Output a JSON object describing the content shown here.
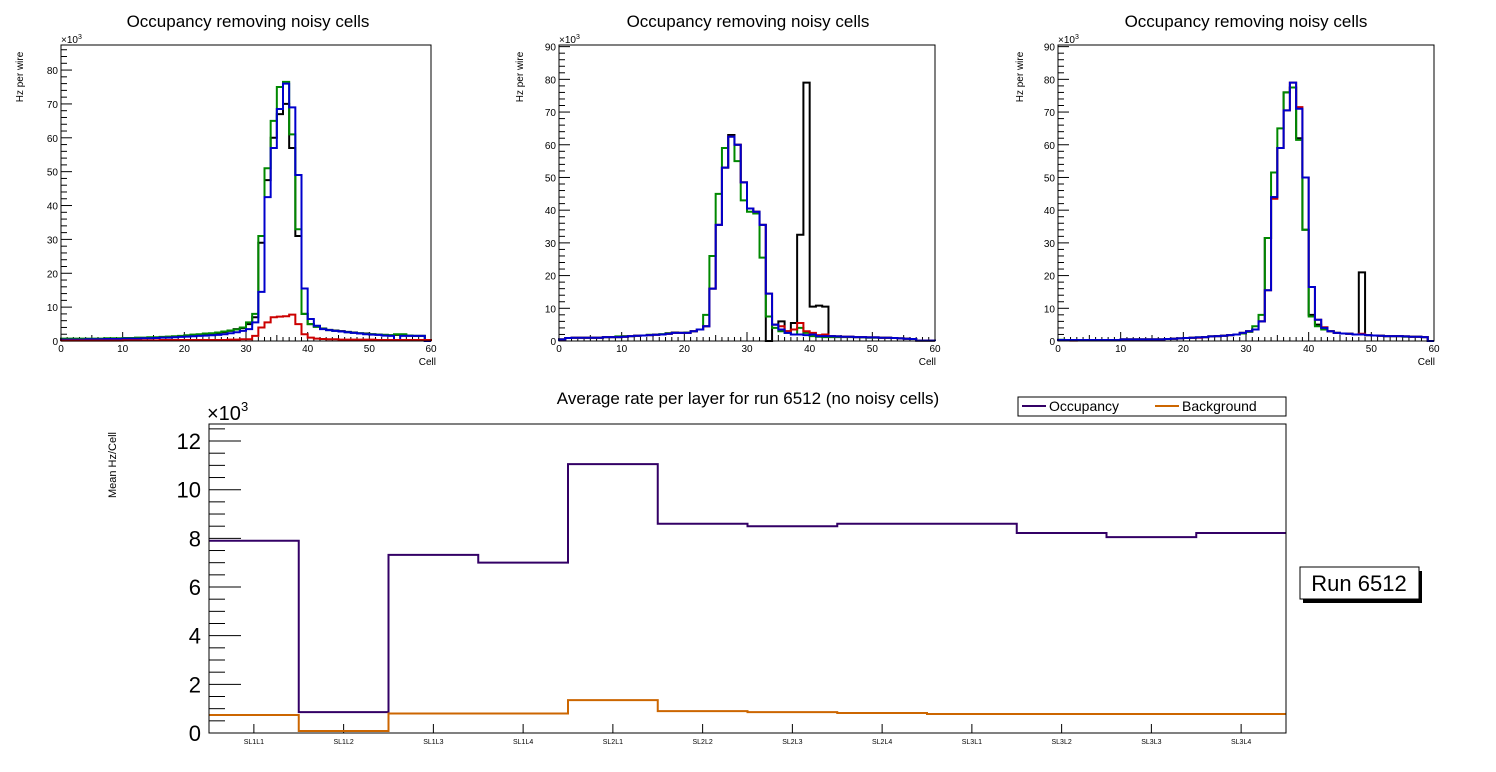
{
  "chart_data": [
    {
      "type": "histogram-step",
      "title": "Occupancy removing noisy cells",
      "xlabel": "Cell",
      "ylabel": "Hz per wire",
      "y_multiplier_label": "×10",
      "y_multiplier_exp": "3",
      "xlim": [
        0,
        60
      ],
      "ylim": [
        0,
        87.4
      ],
      "xticks": [
        0,
        10,
        20,
        30,
        40,
        50,
        60
      ],
      "yticks": [
        0,
        10,
        20,
        30,
        40,
        50,
        60,
        70,
        80
      ],
      "grid": false,
      "series": [
        {
          "name": "black",
          "color": "#000000",
          "values": [
            0.6,
            0.6,
            0.6,
            0.6,
            0.6,
            0.6,
            0.6,
            0.6,
            0.7,
            0.7,
            0.8,
            0.8,
            0.9,
            0.9,
            1.0,
            1.0,
            1.1,
            1.2,
            1.3,
            1.4,
            1.6,
            1.8,
            1.9,
            2.0,
            2.1,
            2.3,
            2.6,
            3.0,
            3.5,
            3.8,
            5.0,
            7.0,
            29.0,
            47.5,
            60.0,
            67.0,
            70.0,
            57.0,
            31.0,
            8.0,
            5.0,
            4.2,
            3.7,
            3.3,
            3.1,
            2.9,
            2.7,
            2.5,
            2.3,
            2.2,
            2.0,
            1.9,
            1.8,
            1.7,
            1.8,
            1.7,
            1.6,
            1.5,
            1.5,
            0
          ]
        },
        {
          "name": "green",
          "color": "#008800",
          "values": [
            0.7,
            0.7,
            0.7,
            0.7,
            0.7,
            0.7,
            0.7,
            0.8,
            0.8,
            0.8,
            0.9,
            0.9,
            1.0,
            1.0,
            1.1,
            1.1,
            1.2,
            1.3,
            1.4,
            1.5,
            1.7,
            1.9,
            2.0,
            2.2,
            2.3,
            2.5,
            2.8,
            3.1,
            3.4,
            4.0,
            5.5,
            8.0,
            31.0,
            51.0,
            65.0,
            75.0,
            76.5,
            61.0,
            33.0,
            8.0,
            5.0,
            4.2,
            3.6,
            3.2,
            3.0,
            2.8,
            2.6,
            2.4,
            2.3,
            2.1,
            2.0,
            1.9,
            1.8,
            1.7,
            2.0,
            2.0,
            1.6,
            1.5,
            1.5,
            0
          ]
        },
        {
          "name": "blue",
          "color": "#0000cc",
          "values": [
            0.4,
            0.4,
            0.4,
            0.4,
            0.5,
            0.5,
            0.5,
            0.6,
            0.6,
            0.6,
            0.7,
            0.7,
            0.7,
            0.8,
            0.8,
            0.9,
            1.0,
            1.0,
            1.1,
            1.2,
            1.3,
            1.4,
            1.5,
            1.6,
            1.7,
            1.8,
            2.0,
            2.3,
            2.6,
            3.0,
            3.5,
            5.5,
            14.5,
            42.5,
            57.0,
            68.5,
            76.0,
            69.0,
            49.0,
            15.5,
            6.5,
            4.5,
            3.5,
            3.2,
            3.0,
            2.8,
            2.6,
            2.4,
            2.2,
            2.0,
            1.9,
            1.8,
            1.6,
            1.5,
            0.3,
            1.5,
            1.5,
            1.5,
            1.5,
            0
          ]
        },
        {
          "name": "red",
          "color": "#cc0000",
          "values": [
            0.1,
            0.1,
            0.1,
            0.1,
            0.1,
            0.1,
            0.1,
            0.1,
            0.1,
            0.1,
            0.2,
            0.2,
            0.2,
            0.2,
            0.2,
            0.2,
            0.3,
            0.3,
            0.3,
            0.3,
            0.3,
            0.3,
            0.3,
            0.3,
            0.3,
            0.3,
            0.3,
            0.4,
            0.4,
            0.5,
            0.5,
            1.5,
            4.0,
            5.5,
            7.0,
            7.2,
            7.3,
            7.8,
            5.0,
            2.0,
            1.0,
            0.7,
            0.6,
            0.5,
            0.5,
            0.4,
            0.4,
            0.4,
            0.4,
            0.4,
            0.4,
            0.3,
            0.3,
            0.3,
            0.3,
            0.3,
            0.3,
            0.3,
            0.3,
            0.3
          ]
        }
      ]
    },
    {
      "type": "histogram-step",
      "title": "Occupancy removing noisy cells",
      "xlabel": "Cell",
      "ylabel": "Hz per wire",
      "y_multiplier_label": "×10",
      "y_multiplier_exp": "3",
      "xlim": [
        0,
        60
      ],
      "ylim": [
        0,
        90.5
      ],
      "xticks": [
        0,
        10,
        20,
        30,
        40,
        50,
        60
      ],
      "yticks": [
        0,
        10,
        20,
        30,
        40,
        50,
        60,
        70,
        80,
        90
      ],
      "grid": false,
      "series": [
        {
          "name": "black",
          "color": "#000000",
          "values": [
            0.5,
            0.9,
            1.0,
            1.0,
            1.0,
            1.0,
            1.0,
            1.2,
            1.2,
            1.2,
            1.3,
            1.5,
            1.6,
            1.7,
            1.8,
            1.9,
            2.0,
            2.2,
            2.6,
            2.5,
            2.5,
            3.0,
            3.5,
            4.5,
            16.0,
            35.5,
            53.0,
            63.0,
            60.0,
            48.5,
            40.5,
            39.5,
            35.5,
            0,
            5.0,
            6.0,
            3.0,
            5.5,
            32.5,
            79.0,
            10.5,
            10.8,
            10.5,
            1.5,
            1.4,
            1.3,
            1.3,
            1.2,
            1.2,
            1.1,
            1.1,
            1.0,
            1.0,
            0.9,
            0.8,
            0.7,
            0.6,
            0.1,
            0.1,
            0.1
          ]
        },
        {
          "name": "green",
          "color": "#008800",
          "values": [
            0.5,
            0.9,
            1.0,
            1.0,
            1.0,
            1.0,
            1.0,
            1.2,
            1.2,
            1.4,
            1.5,
            1.5,
            1.6,
            1.7,
            1.9,
            2.0,
            2.1,
            2.4,
            2.5,
            2.5,
            2.6,
            3.0,
            3.5,
            8.0,
            26.0,
            45.0,
            59.0,
            62.5,
            55.0,
            43.0,
            39.5,
            39.0,
            25.5,
            7.5,
            4.0,
            3.0,
            2.5,
            2.0,
            4.0,
            2.5,
            1.5,
            1.3,
            1.2,
            1.2,
            1.2,
            1.2,
            1.2,
            1.2,
            1.1,
            1.0,
            1.0,
            1.0,
            1.0,
            0.9,
            0.8,
            0.7,
            0.6,
            0.1,
            0.1,
            0.1
          ]
        },
        {
          "name": "red",
          "color": "#cc0000",
          "values": [
            0.5,
            0.9,
            1.0,
            1.0,
            1.0,
            1.0,
            1.0,
            1.2,
            1.2,
            1.2,
            1.3,
            1.5,
            1.6,
            1.7,
            1.8,
            1.9,
            2.0,
            2.2,
            2.5,
            2.5,
            2.5,
            3.0,
            3.5,
            4.5,
            16.0,
            35.5,
            53.0,
            62.5,
            60.0,
            48.5,
            40.5,
            39.5,
            35.5,
            14.5,
            5.0,
            4.5,
            3.0,
            3.5,
            5.5,
            3.0,
            2.5,
            1.8,
            2.0,
            1.5,
            1.4,
            1.3,
            1.3,
            1.2,
            1.2,
            1.1,
            1.1,
            1.0,
            1.0,
            0.9,
            0.8,
            0.7,
            0.6,
            0.1,
            0.1,
            0.1
          ]
        },
        {
          "name": "blue",
          "color": "#0000cc",
          "values": [
            0.5,
            0.9,
            1.0,
            1.0,
            1.0,
            1.0,
            1.0,
            1.2,
            1.2,
            1.2,
            1.3,
            1.5,
            1.6,
            1.7,
            1.8,
            1.9,
            2.0,
            2.2,
            2.5,
            2.5,
            2.5,
            3.0,
            3.5,
            4.5,
            16.0,
            35.5,
            53.0,
            62.5,
            60.0,
            48.5,
            40.5,
            39.5,
            35.5,
            14.5,
            5.0,
            3.5,
            2.5,
            2.0,
            2.0,
            1.8,
            2.0,
            1.5,
            1.5,
            1.5,
            1.4,
            1.3,
            1.3,
            1.2,
            1.2,
            1.1,
            1.1,
            1.0,
            1.0,
            0.9,
            0.8,
            0.7,
            0.6,
            0.1,
            0.1,
            0.1
          ]
        }
      ]
    },
    {
      "type": "histogram-step",
      "title": "Occupancy removing noisy cells",
      "xlabel": "Cell",
      "ylabel": "Hz per wire",
      "y_multiplier_label": "×10",
      "y_multiplier_exp": "3",
      "xlim": [
        0,
        60
      ],
      "ylim": [
        0,
        90.5
      ],
      "xticks": [
        0,
        10,
        20,
        30,
        40,
        50,
        60
      ],
      "yticks": [
        0,
        10,
        20,
        30,
        40,
        50,
        60,
        70,
        80,
        90
      ],
      "grid": false,
      "series": [
        {
          "name": "black",
          "color": "#000000",
          "values": [
            0.3,
            0.3,
            0.3,
            0.3,
            0.3,
            0.3,
            0.3,
            0.3,
            0.3,
            0.3,
            0.5,
            0.5,
            0.5,
            0.5,
            0.5,
            0.5,
            0.5,
            0.6,
            0.7,
            0.8,
            0.9,
            1.0,
            1.1,
            1.2,
            1.4,
            1.5,
            1.6,
            1.8,
            2.0,
            2.5,
            3.0,
            3.5,
            6.0,
            31.5,
            44.0,
            59.0,
            76.0,
            77.5,
            62.0,
            34.0,
            8.0,
            5.0,
            4.0,
            3.0,
            2.5,
            2.3,
            2.2,
            2.0,
            21.0,
            1.8,
            1.7,
            1.6,
            1.5,
            1.5,
            1.5,
            1.4,
            1.3,
            1.3,
            1.2,
            0
          ]
        },
        {
          "name": "green",
          "color": "#008800",
          "values": [
            0.4,
            0.3,
            0.3,
            0.3,
            0.3,
            0.3,
            0.3,
            0.3,
            0.3,
            0.3,
            0.5,
            0.5,
            0.5,
            0.5,
            0.5,
            0.5,
            0.5,
            0.6,
            0.7,
            0.8,
            0.9,
            1.0,
            1.1,
            1.2,
            1.4,
            1.5,
            1.6,
            1.8,
            2.0,
            2.3,
            2.8,
            4.5,
            8.0,
            31.5,
            51.5,
            65.0,
            76.0,
            77.5,
            61.5,
            34.0,
            7.5,
            4.5,
            3.5,
            3.0,
            2.5,
            2.3,
            2.2,
            2.0,
            2.0,
            1.8,
            1.7,
            1.6,
            1.5,
            1.5,
            1.5,
            1.3,
            1.3,
            1.3,
            1.2,
            0
          ]
        },
        {
          "name": "red",
          "color": "#cc0000",
          "values": [
            0.2,
            0.2,
            0.1,
            0.2,
            0.2,
            0.2,
            0.2,
            0.3,
            0.3,
            0.3,
            0.5,
            0.5,
            0.5,
            0.5,
            0.5,
            0.5,
            0.5,
            0.6,
            0.7,
            0.8,
            0.9,
            1.0,
            1.0,
            1.2,
            1.4,
            1.5,
            1.6,
            1.8,
            2.0,
            2.5,
            3.0,
            3.5,
            6.0,
            15.5,
            43.5,
            59.0,
            70.5,
            79.0,
            71.5,
            50.0,
            16.5,
            6.5,
            4.2,
            3.0,
            2.5,
            2.3,
            2.2,
            2.0,
            2.2,
            1.8,
            1.7,
            1.6,
            1.5,
            1.5,
            1.5,
            1.4,
            1.3,
            1.3,
            1.2,
            0
          ]
        },
        {
          "name": "blue",
          "color": "#0000cc",
          "values": [
            0.3,
            0.3,
            0.3,
            0.3,
            0.3,
            0.3,
            0.3,
            0.3,
            0.3,
            0.3,
            0.5,
            0.5,
            0.5,
            0.5,
            0.5,
            0.5,
            0.5,
            0.6,
            0.7,
            0.8,
            0.9,
            1.0,
            1.1,
            1.2,
            1.4,
            1.5,
            1.6,
            1.8,
            2.0,
            2.5,
            3.0,
            3.5,
            6.0,
            15.5,
            44.0,
            59.0,
            70.5,
            79.0,
            71.0,
            50.0,
            16.5,
            6.5,
            4.0,
            3.0,
            2.5,
            2.3,
            2.2,
            2.0,
            2.0,
            1.8,
            1.7,
            1.6,
            1.5,
            1.5,
            1.5,
            1.4,
            1.3,
            1.3,
            1.2,
            0
          ]
        }
      ]
    },
    {
      "type": "histogram-step",
      "title": "Average rate per layer for run 6512 (no noisy cells)",
      "xlabel": "",
      "ylabel": "Mean Hz/Cell",
      "y_multiplier_label": "×10",
      "y_multiplier_exp": "3",
      "categories": [
        "SL1L1",
        "SL1L2",
        "SL1L3",
        "SL1L4",
        "SL2L1",
        "SL2L2",
        "SL2L3",
        "SL2L4",
        "SL3L1",
        "SL3L2",
        "SL3L3",
        "SL3L4"
      ],
      "ylim": [
        0,
        12.7
      ],
      "yticks": [
        0,
        2,
        4,
        6,
        8,
        10,
        12
      ],
      "grid": false,
      "legend_position": "top-right",
      "series": [
        {
          "name": "Occupancy",
          "color": "#330066",
          "values": [
            7.9,
            0.86,
            7.32,
            7.0,
            11.05,
            8.6,
            8.5,
            8.6,
            8.6,
            8.22,
            8.05,
            8.22
          ]
        },
        {
          "name": "Background",
          "color": "#cc6600",
          "values": [
            0.74,
            0.08,
            0.8,
            0.8,
            1.35,
            0.9,
            0.86,
            0.82,
            0.78,
            0.78,
            0.78,
            0.78
          ]
        }
      ]
    }
  ],
  "run_label": "Run 6512"
}
